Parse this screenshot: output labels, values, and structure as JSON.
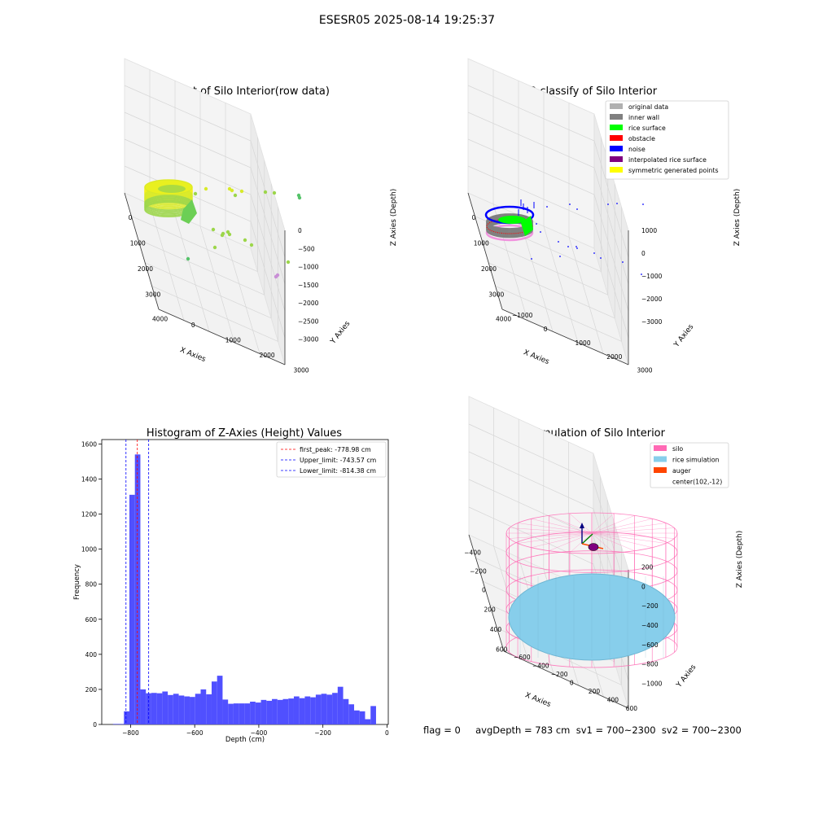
{
  "figure": {
    "suptitle": "ESESR05 2025-08-14 19:25:37",
    "status_line": "flag = 0     avgDepth = 783 cm  sv1 = 700~2300  sv2 = 700~2300"
  },
  "chart_data": [
    {
      "type": "scatter",
      "title": "3D Plot of Silo Interior(row data)",
      "xlabel": "X Axies",
      "ylabel": "Y Axies",
      "zlabel": "Z Axies (Depth)",
      "x_ticks": [
        "0",
        "1000",
        "2000",
        "3000",
        "4000"
      ],
      "y_ticks": [
        "0",
        "1000",
        "2000",
        "3000"
      ],
      "z_ticks": [
        "0",
        "−500",
        "−1000",
        "−1500",
        "−2000",
        "−2500",
        "−3000"
      ],
      "grid": true,
      "colormap": [
        "#3ea7c6",
        "#56c36a",
        "#9cd64a",
        "#d8ea2a",
        "#f4f01c"
      ]
    },
    {
      "type": "scatter",
      "title": "3D classify of Silo Interior",
      "xlabel": "X Axies",
      "ylabel": "Y Axies",
      "zlabel": "Z Axies (Depth)",
      "x_ticks": [
        "0",
        "1000",
        "2000",
        "3000",
        "4000"
      ],
      "y_ticks": [
        "−1000",
        "0",
        "1000",
        "2000",
        "3000"
      ],
      "z_ticks": [
        "1000",
        "0",
        "−1000",
        "−2000",
        "−3000"
      ],
      "grid": true,
      "legend_position": "top-right",
      "legend": [
        {
          "label": "original data",
          "color": "#b0b0b0"
        },
        {
          "label": "inner wall",
          "color": "#808080"
        },
        {
          "label": "rice surface",
          "color": "#00ff00"
        },
        {
          "label": "obstacle",
          "color": "#ff0000"
        },
        {
          "label": "noise",
          "color": "#0000ff"
        },
        {
          "label": "interpolated rice surface",
          "color": "#800080"
        },
        {
          "label": "symmetric generated points",
          "color": "#ffff00"
        }
      ]
    },
    {
      "type": "bar",
      "title": "Histogram of Z-Axies (Height) Values",
      "xlabel": "Depth (cm)",
      "ylabel": "Frequency",
      "xlim": [
        -890,
        4
      ],
      "ylim": [
        0,
        1625
      ],
      "x_ticks": [
        -800,
        -600,
        -400,
        -200,
        0
      ],
      "y_ticks": [
        0,
        200,
        400,
        600,
        800,
        1000,
        1200,
        1400,
        1600
      ],
      "bar_color": "#5050ff",
      "bins": {
        "start": -855,
        "width": 17.1,
        "values": [
          3,
          3,
          75,
          1310,
          1540,
          200,
          178,
          180,
          178,
          188,
          168,
          175,
          165,
          160,
          157,
          175,
          200,
          172,
          245,
          278,
          142,
          118,
          120,
          120,
          120,
          130,
          125,
          140,
          135,
          145,
          140,
          145,
          148,
          160,
          150,
          160,
          155,
          170,
          175,
          170,
          180,
          215,
          145,
          115,
          80,
          75,
          30,
          105
        ]
      },
      "legend_position": "top-right",
      "vlines": [
        {
          "label": "first_peak: -778.98 cm",
          "x": -778.98,
          "color": "#ff0000"
        },
        {
          "label": "Upper_limit: -743.57 cm",
          "x": -743.57,
          "color": "#0000ff"
        },
        {
          "label": "Lower_limit: -814.38 cm",
          "x": -814.38,
          "color": "#0000ff"
        }
      ],
      "grid": false
    },
    {
      "type": "scatter",
      "title": "3D simulation of Silo Interior",
      "xlabel": "X Axies",
      "ylabel": "Y Axies",
      "zlabel": "Z Axies (Depth)",
      "x_ticks": [
        "−400",
        "−200",
        "0",
        "200",
        "400",
        "600"
      ],
      "y_ticks": [
        "−600",
        "−400",
        "−200",
        "0",
        "200",
        "400",
        "600"
      ],
      "z_ticks": [
        "200",
        "0",
        "−200",
        "−400",
        "−600",
        "−800",
        "−1000"
      ],
      "grid": true,
      "legend_position": "top-right",
      "legend": [
        {
          "label": "silo",
          "color": "#ff69b4"
        },
        {
          "label": "rice simulation",
          "color": "#87ceeb"
        },
        {
          "label": "auger",
          "color": "#ff4500"
        },
        {
          "label": "center(102,-12)",
          "color": ""
        }
      ]
    }
  ]
}
